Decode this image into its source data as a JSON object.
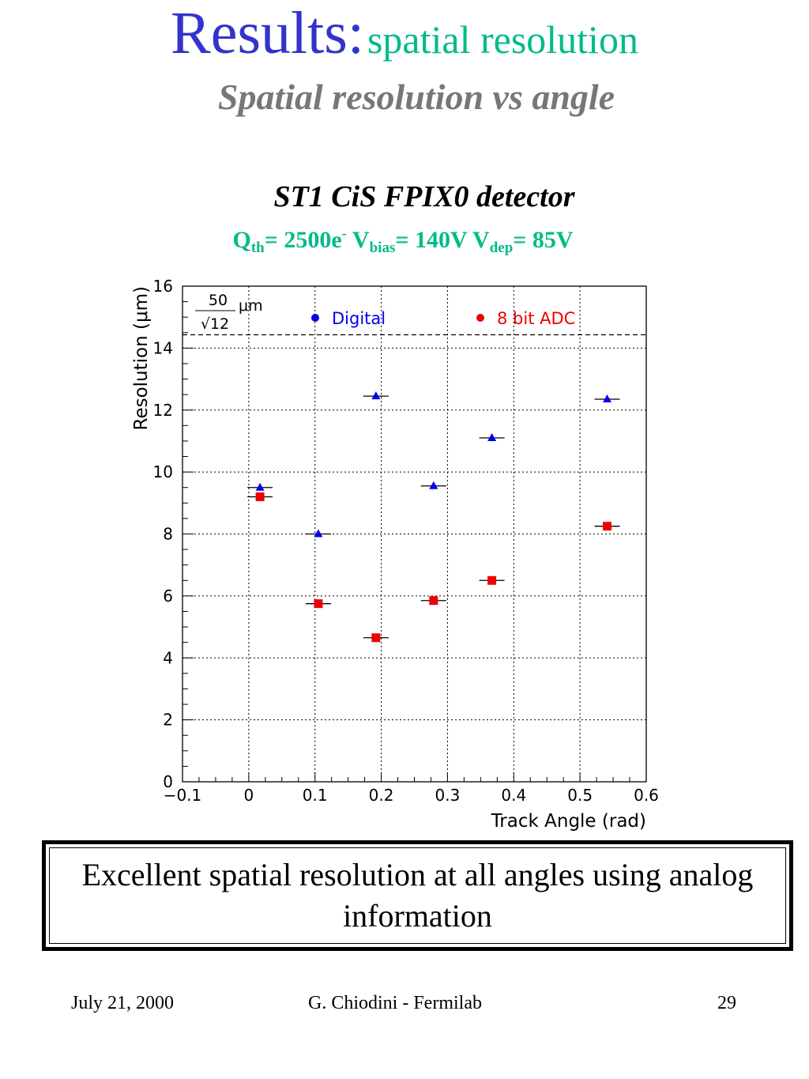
{
  "header": {
    "title_main": "Results:",
    "title_sub": "spatial resolution",
    "subtitle": "Spatial resolution vs angle"
  },
  "chart_header": {
    "title": "ST1 CiS FPIX0 detector",
    "params": {
      "q_label": "Q",
      "q_sub": "th",
      "q_value": "= 2500e",
      "q_sup": "-",
      "v_label": " V",
      "v_sub": "bias",
      "v_value": "= 140V  V",
      "dep_sub": "dep",
      "dep_value": "= 85V"
    }
  },
  "chart_data": {
    "type": "scatter",
    "xlabel": "Track Angle (rad)",
    "ylabel": "Resolution (μm)",
    "xlim": [
      -0.1,
      0.6
    ],
    "ylim": [
      0,
      16
    ],
    "xticks": [
      "−0.1",
      "0",
      "0.1",
      "0.2",
      "0.3",
      "0.4",
      "0.5",
      "0.6"
    ],
    "yticks": [
      "0",
      "2",
      "4",
      "6",
      "8",
      "10",
      "12",
      "14",
      "16"
    ],
    "grid": true,
    "reference_line": {
      "y": 14.43,
      "label_numerator": "50",
      "label_denominator": "√12",
      "label_unit": "μm"
    },
    "series": [
      {
        "name": "Digital",
        "color": "#0000ee",
        "marker": "triangle",
        "legend_marker": "circle",
        "x": [
          0.017,
          0.105,
          0.192,
          0.279,
          0.367,
          0.541
        ],
        "y": [
          9.5,
          8.0,
          12.45,
          9.55,
          11.1,
          12.35
        ]
      },
      {
        "name": "8 bit ADC",
        "color": "#ee0000",
        "marker": "square",
        "legend_marker": "circle",
        "x": [
          0.017,
          0.105,
          0.192,
          0.279,
          0.367,
          0.541
        ],
        "y": [
          9.2,
          5.75,
          4.65,
          5.85,
          6.5,
          8.25
        ]
      }
    ]
  },
  "conclusion": {
    "text": "Excellent spatial resolution at all angles using analog information"
  },
  "footer": {
    "date": "July 21, 2000",
    "author": "G. Chiodini - Fermilab",
    "page": "29"
  }
}
